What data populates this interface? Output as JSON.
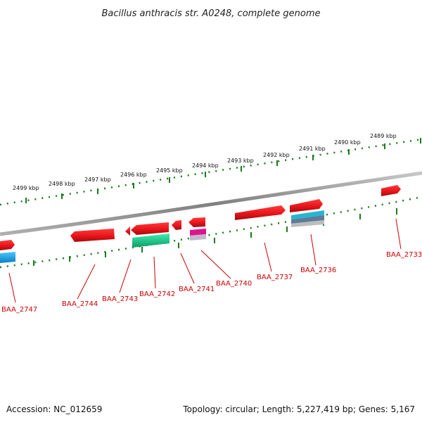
{
  "title": "Bacillus anthracis str. A0248, complete genome",
  "accession": "Accession: NC_012659",
  "summary": "Topology: circular; Length: 5,227,419 bp; Genes: 5,167",
  "kbp_labels": [
    "2499 kbp",
    "2498 kbp",
    "2497 kbp",
    "2496 kbp",
    "2495 kbp",
    "2494 kbp",
    "2493 kbp",
    "2492 kbp",
    "2491 kbp",
    "2490 kbp",
    "2489 kbp"
  ],
  "gene_labels": [
    "BAA_2747",
    "BAA_2744",
    "BAA_2743",
    "BAA_2742",
    "BAA_2741",
    "BAA_2740",
    "BAA_2737",
    "BAA_2736",
    "BAA_2733"
  ],
  "colors": {
    "gene_red": "#e8141a",
    "gene_teal": "#18c98c",
    "gene_cyan": "#1aa9e6",
    "gene_magenta": "#e0138f",
    "tick_green": "#1a7a1a",
    "backbone": "#8a8a8a",
    "label_red": "#cc0000"
  }
}
